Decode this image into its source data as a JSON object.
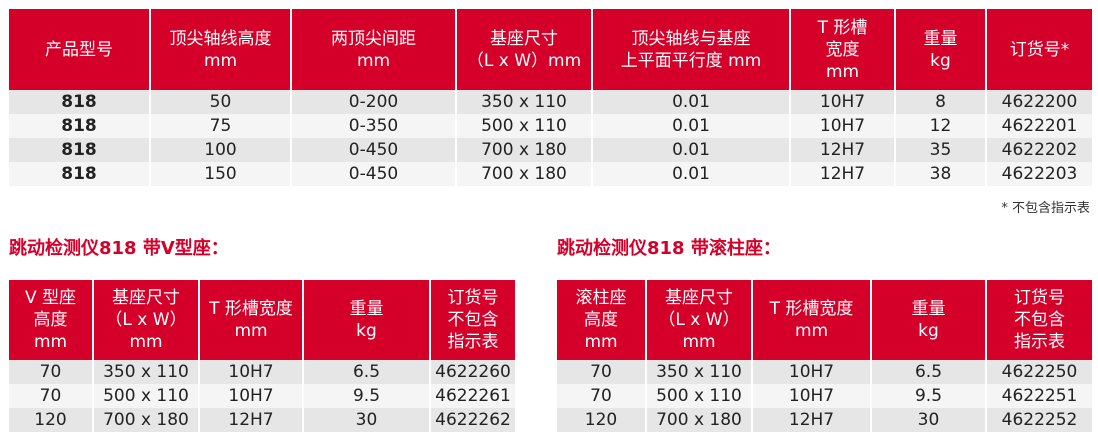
{
  "main_table": {
    "headers": [
      "产品型号",
      "顶尖轴线高度\nmm",
      "两顶尖间距\nmm",
      "基座尺寸\n（L x W）mm",
      "顶尖轴线与基座\n上平面平行度 mm",
      "T 形槽\n宽度\nmm",
      "重量\nkg",
      "订货号*"
    ],
    "rows": [
      [
        "818",
        "50",
        "0-200",
        "350 x 110",
        "0.01",
        "10H7",
        "8",
        "4622200"
      ],
      [
        "818",
        "75",
        "0-350",
        "500 x 110",
        "0.01",
        "10H7",
        "12",
        "4622201"
      ],
      [
        "818",
        "100",
        "0-450",
        "700 x 180",
        "0.01",
        "12H7",
        "35",
        "4622202"
      ],
      [
        "818",
        "150",
        "0-450",
        "700 x 180",
        "0.01",
        "12H7",
        "38",
        "4622203"
      ]
    ],
    "footnote": "* 不包含指示表"
  },
  "v_block_section": {
    "title": "跳动检测仪818 带V型座：",
    "headers": [
      "V 型座\n高度\nmm",
      "基座尺寸\n（L x W）\nmm",
      "T 形槽宽度\nmm",
      "重量\nkg",
      "订货号\n不包含\n指示表"
    ],
    "rows": [
      [
        "70",
        "350 x 110",
        "10H7",
        "6.5",
        "4622260"
      ],
      [
        "70",
        "500 x 110",
        "10H7",
        "9.5",
        "4622261"
      ],
      [
        "120",
        "700 x 180",
        "12H7",
        "30",
        "4622262"
      ]
    ]
  },
  "roller_section": {
    "title": "跳动检测仪818 带滚柱座：",
    "headers": [
      "滚柱座\n高度\nmm",
      "基座尺寸\n（L x W）\nmm",
      "T 形槽宽度\nmm",
      "重量\nkg",
      "订货号\n不包含\n指示表"
    ],
    "rows": [
      [
        "70",
        "350 x 110",
        "10H7",
        "6.5",
        "4622250"
      ],
      [
        "70",
        "500 x 110",
        "10H7",
        "9.5",
        "4622251"
      ],
      [
        "120",
        "700 x 180",
        "12H7",
        "30",
        "4622252"
      ]
    ]
  },
  "colors": {
    "header_red": "#d5002a",
    "row_dark": "#e6e6e6",
    "row_light": "#f4f5f4"
  }
}
